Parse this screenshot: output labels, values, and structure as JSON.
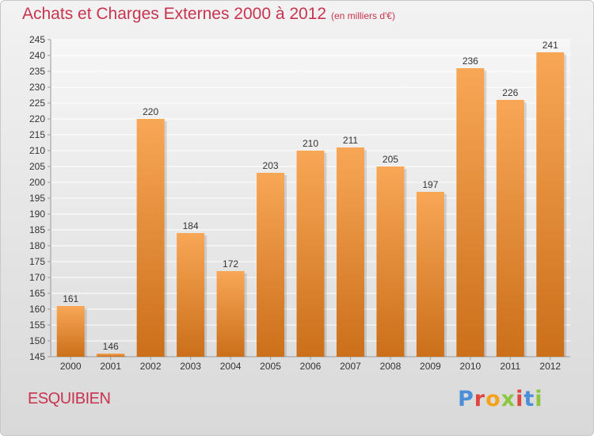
{
  "header": {
    "title": "Achats et Charges Externes 2000 à 2012",
    "unit": "(en milliers d'€)"
  },
  "footer": {
    "commune": "ESQUIBIEN",
    "brand": "Proxiti"
  },
  "colors": {
    "title": "#c8344f",
    "bar_light": "#f8a756",
    "bar_dark": "#cb6f1a",
    "logo_letters": [
      "#4a8fd8",
      "#e0443e",
      "#f5a21b",
      "#8cc63f",
      "#e0443e",
      "#4a8fd8",
      "#8cc63f"
    ]
  },
  "chart_data": {
    "type": "bar",
    "title": "Achats et Charges Externes 2000 à 2012",
    "subtitle": "(en milliers d'€)",
    "categories": [
      "2000",
      "2001",
      "2002",
      "2003",
      "2004",
      "2005",
      "2006",
      "2007",
      "2008",
      "2009",
      "2010",
      "2011",
      "2012"
    ],
    "values": [
      161,
      146,
      220,
      184,
      172,
      203,
      210,
      211,
      205,
      197,
      236,
      226,
      241
    ],
    "ylim": [
      145,
      245
    ],
    "yticks": [
      145,
      150,
      155,
      160,
      165,
      170,
      175,
      180,
      185,
      190,
      195,
      200,
      205,
      210,
      215,
      220,
      225,
      230,
      235,
      240,
      245
    ],
    "grid": true,
    "data_labels": true,
    "xlabel": "",
    "ylabel": ""
  }
}
